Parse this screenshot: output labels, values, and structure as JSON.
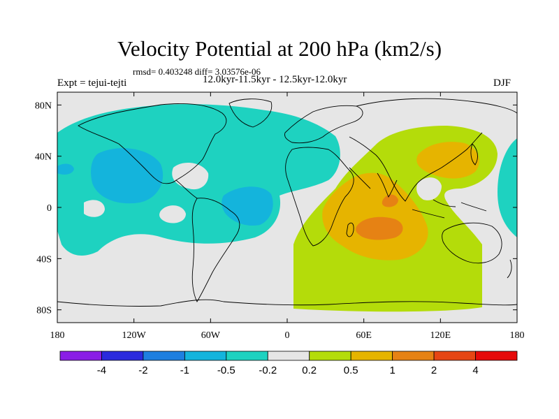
{
  "header": {
    "title": "Velocity Potential at 200 hPa (km2/s)",
    "stats": "rmsd= 0.403248 diff= 3.03576e-06",
    "period": "12.0kyr-11.5kyr - 12.5kyr-12.0kyr",
    "experiment": "Expt = tejui-tejti",
    "season": "DJF"
  },
  "chart_data": {
    "type": "heatmap",
    "title": "Velocity Potential at 200 hPa (km2/s)",
    "x_ticks": [
      {
        "value": -180,
        "label": "180"
      },
      {
        "value": -120,
        "label": "120W"
      },
      {
        "value": -60,
        "label": "60W"
      },
      {
        "value": 0,
        "label": "0"
      },
      {
        "value": 60,
        "label": "60E"
      },
      {
        "value": 120,
        "label": "120E"
      },
      {
        "value": 180,
        "label": "180"
      }
    ],
    "y_ticks": [
      {
        "value": 80,
        "label": "80N"
      },
      {
        "value": 40,
        "label": "40N"
      },
      {
        "value": 0,
        "label": "0"
      },
      {
        "value": -40,
        "label": "40S"
      },
      {
        "value": -80,
        "label": "80S"
      }
    ],
    "xlim": [
      -180,
      180
    ],
    "ylim": [
      -90,
      90
    ],
    "colorbar": {
      "labels": [
        "-4",
        "-2",
        "-1",
        "-0.5",
        "-0.2",
        "0.2",
        "0.5",
        "1",
        "2",
        "4"
      ],
      "colors": [
        "#8a1ee6",
        "#2b2bdd",
        "#1e7fe0",
        "#14b4dc",
        "#1ed2c0",
        "#e6e6e6",
        "#b4dc0a",
        "#e6b400",
        "#e68214",
        "#e64614",
        "#e60a0a"
      ]
    },
    "fields": [
      {
        "level": "-0.2 to -0.5",
        "color": "#1ed2c0",
        "region": "North Pacific / North America / Atlantic",
        "center": [
          -95,
          25
        ]
      },
      {
        "level": "-0.5 to -1",
        "color": "#14b4dc",
        "region": "East Pacific",
        "center": [
          -140,
          20
        ]
      },
      {
        "level": "-0.5 to -1",
        "color": "#14b4dc",
        "region": "Tropical Atlantic",
        "center": [
          -35,
          5
        ]
      },
      {
        "level": "-0.2 to -0.5",
        "color": "#1ed2c0",
        "region": "Western Pacific edge",
        "center": [
          175,
          20
        ]
      },
      {
        "level": "0.2 to 0.5",
        "color": "#b4dc0a",
        "region": "Indian Ocean / Southern Ocean / East Asia",
        "center": [
          90,
          -20
        ]
      },
      {
        "level": "0.5 to 1",
        "color": "#e6b400",
        "region": "Indian Ocean",
        "center": [
          75,
          -10
        ]
      },
      {
        "level": "0.5 to 1",
        "color": "#e6b400",
        "region": "East Asia",
        "center": [
          120,
          35
        ]
      },
      {
        "level": "1 to 2",
        "color": "#e68214",
        "region": "Bay of Bengal",
        "center": [
          82,
          5
        ]
      },
      {
        "level": "1 to 2",
        "color": "#e68214",
        "region": "Central Indian Ocean",
        "center": [
          78,
          -15
        ]
      }
    ]
  }
}
